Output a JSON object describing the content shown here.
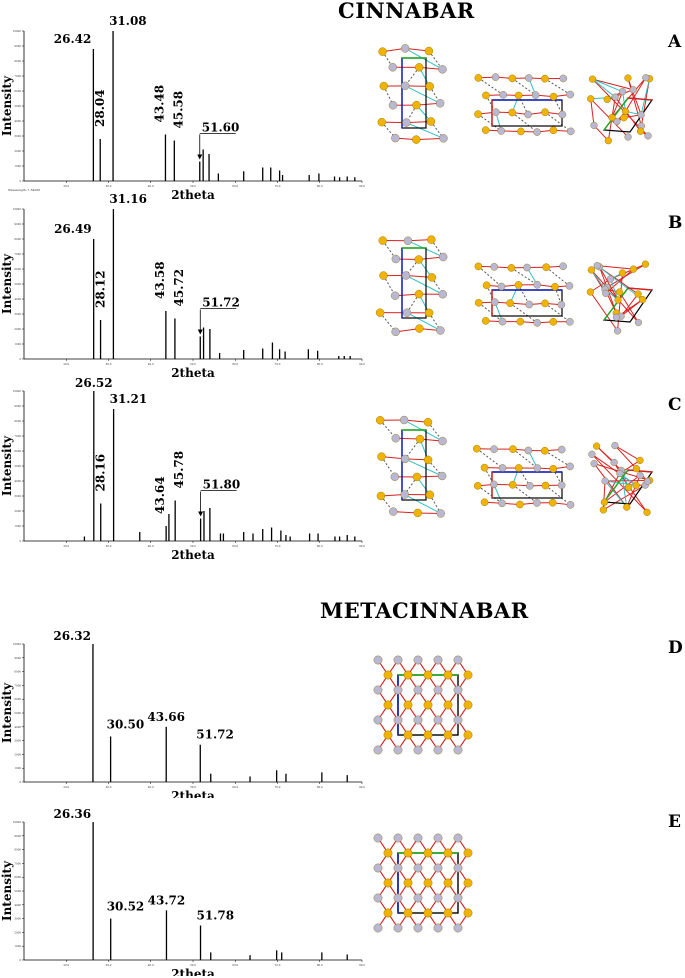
{
  "sections": {
    "cinnabar_title": "CINNABAR",
    "metacinnabar_title": "METACINNABAR"
  },
  "panels": [
    {
      "letter": "A"
    },
    {
      "letter": "B"
    },
    {
      "letter": "C"
    },
    {
      "letter": "D"
    },
    {
      "letter": "E"
    }
  ],
  "colors": {
    "sulfur_atom": "#f0b400",
    "mercury_atom": "#b8b8d4",
    "bond_red": "#d92020",
    "bond_cyan": "#30c0c8",
    "cell_blue": "#1020c0",
    "cell_green": "#20b020",
    "cell_black": "#000000"
  },
  "chart_data": [
    {
      "panel": "A",
      "type": "bar",
      "xlabel": "2theta",
      "ylabel": "Intensity",
      "footnote": "Wavelength: 1.54056",
      "xlim": [
        10,
        90
      ],
      "ylim": [
        0,
        10000
      ],
      "peaks": [
        {
          "x": 26.42,
          "y": 8800,
          "label": "26.42"
        },
        {
          "x": 28.04,
          "y": 2800,
          "label": "28.04"
        },
        {
          "x": 31.08,
          "y": 10000,
          "label": "31.08"
        },
        {
          "x": 43.48,
          "y": 3100,
          "label": "43.48"
        },
        {
          "x": 45.58,
          "y": 2700,
          "label": "45.58"
        },
        {
          "x": 51.6,
          "y": 1300,
          "label": "51.60",
          "arrow": true,
          "underline": true
        },
        {
          "x": 52.4,
          "y": 2100
        },
        {
          "x": 53.8,
          "y": 1800
        },
        {
          "x": 56.0,
          "y": 500
        },
        {
          "x": 62.0,
          "y": 650
        },
        {
          "x": 66.5,
          "y": 900
        },
        {
          "x": 68.4,
          "y": 900
        },
        {
          "x": 70.5,
          "y": 700
        },
        {
          "x": 71.2,
          "y": 400
        },
        {
          "x": 77.5,
          "y": 400
        },
        {
          "x": 79.8,
          "y": 500
        },
        {
          "x": 83.5,
          "y": 300
        },
        {
          "x": 84.7,
          "y": 250
        },
        {
          "x": 86.5,
          "y": 300
        },
        {
          "x": 88.3,
          "y": 250
        }
      ]
    },
    {
      "panel": "B",
      "type": "bar",
      "xlabel": "2theta",
      "ylabel": "Intensity",
      "xlim": [
        10,
        90
      ],
      "ylim": [
        0,
        10000
      ],
      "peaks": [
        {
          "x": 26.49,
          "y": 8000,
          "label": "26.49"
        },
        {
          "x": 28.12,
          "y": 2600,
          "label": "28.12"
        },
        {
          "x": 31.16,
          "y": 10000,
          "label": "31.16"
        },
        {
          "x": 43.58,
          "y": 3200,
          "label": "43.58"
        },
        {
          "x": 45.72,
          "y": 2700,
          "label": "45.72"
        },
        {
          "x": 51.72,
          "y": 1500,
          "label": "51.72",
          "arrow": true,
          "underline": true
        },
        {
          "x": 52.5,
          "y": 2100
        },
        {
          "x": 54.0,
          "y": 2000
        },
        {
          "x": 56.3,
          "y": 400
        },
        {
          "x": 62.0,
          "y": 600
        },
        {
          "x": 66.5,
          "y": 700
        },
        {
          "x": 68.8,
          "y": 1100
        },
        {
          "x": 70.5,
          "y": 650
        },
        {
          "x": 71.8,
          "y": 500
        },
        {
          "x": 77.3,
          "y": 650
        },
        {
          "x": 79.5,
          "y": 550
        },
        {
          "x": 84.5,
          "y": 200
        },
        {
          "x": 85.8,
          "y": 200
        },
        {
          "x": 87.2,
          "y": 200
        }
      ]
    },
    {
      "panel": "C",
      "type": "bar",
      "xlabel": "2theta",
      "ylabel": "Intensity",
      "xlim": [
        10,
        90
      ],
      "ylim": [
        0,
        10000
      ],
      "peaks": [
        {
          "x": 24.3,
          "y": 300
        },
        {
          "x": 26.52,
          "y": 10000,
          "label": "26.52"
        },
        {
          "x": 28.16,
          "y": 2500,
          "label": "28.16"
        },
        {
          "x": 31.21,
          "y": 8800,
          "label": "31.21"
        },
        {
          "x": 37.4,
          "y": 600
        },
        {
          "x": 43.64,
          "y": 1000,
          "label": "43.64"
        },
        {
          "x": 45.78,
          "y": 2700,
          "label": "45.78"
        },
        {
          "x": 44.3,
          "y": 1800
        },
        {
          "x": 51.8,
          "y": 1500,
          "label": "51.80",
          "arrow": true,
          "underline": true
        },
        {
          "x": 52.6,
          "y": 2000
        },
        {
          "x": 54.0,
          "y": 2200
        },
        {
          "x": 56.5,
          "y": 500
        },
        {
          "x": 57.2,
          "y": 500
        },
        {
          "x": 62.0,
          "y": 600
        },
        {
          "x": 64.2,
          "y": 500
        },
        {
          "x": 66.5,
          "y": 800
        },
        {
          "x": 68.6,
          "y": 900
        },
        {
          "x": 70.8,
          "y": 700
        },
        {
          "x": 72.0,
          "y": 400
        },
        {
          "x": 73.0,
          "y": 300
        },
        {
          "x": 77.6,
          "y": 500
        },
        {
          "x": 79.6,
          "y": 500
        },
        {
          "x": 83.6,
          "y": 300
        },
        {
          "x": 84.7,
          "y": 300
        },
        {
          "x": 86.5,
          "y": 400
        },
        {
          "x": 88.3,
          "y": 300
        }
      ]
    },
    {
      "panel": "D",
      "type": "bar",
      "xlabel": "2theta",
      "ylabel": "Intensity",
      "xlim": [
        10,
        90
      ],
      "ylim": [
        0,
        10000
      ],
      "peaks": [
        {
          "x": 26.32,
          "y": 10000,
          "label": "26.32"
        },
        {
          "x": 30.5,
          "y": 3300,
          "label": "30.50"
        },
        {
          "x": 43.66,
          "y": 4000,
          "label": "43.66"
        },
        {
          "x": 51.72,
          "y": 2700,
          "label": "51.72"
        },
        {
          "x": 54.2,
          "y": 600
        },
        {
          "x": 63.5,
          "y": 400
        },
        {
          "x": 69.8,
          "y": 850
        },
        {
          "x": 72.0,
          "y": 600
        },
        {
          "x": 80.5,
          "y": 700
        },
        {
          "x": 86.5,
          "y": 500
        }
      ]
    },
    {
      "panel": "E",
      "type": "bar",
      "xlabel": "2theta",
      "ylabel": "Intensity",
      "xlim": [
        10,
        90
      ],
      "ylim": [
        0,
        10000
      ],
      "peaks": [
        {
          "x": 26.36,
          "y": 10000,
          "label": "26.36"
        },
        {
          "x": 30.52,
          "y": 3000,
          "label": "30.52"
        },
        {
          "x": 43.72,
          "y": 3600,
          "label": "43.72"
        },
        {
          "x": 51.78,
          "y": 2500,
          "label": "51.78"
        },
        {
          "x": 54.2,
          "y": 550
        },
        {
          "x": 63.5,
          "y": 350
        },
        {
          "x": 69.8,
          "y": 700
        },
        {
          "x": 71.0,
          "y": 550
        },
        {
          "x": 80.5,
          "y": 550
        },
        {
          "x": 86.5,
          "y": 400
        }
      ]
    }
  ]
}
